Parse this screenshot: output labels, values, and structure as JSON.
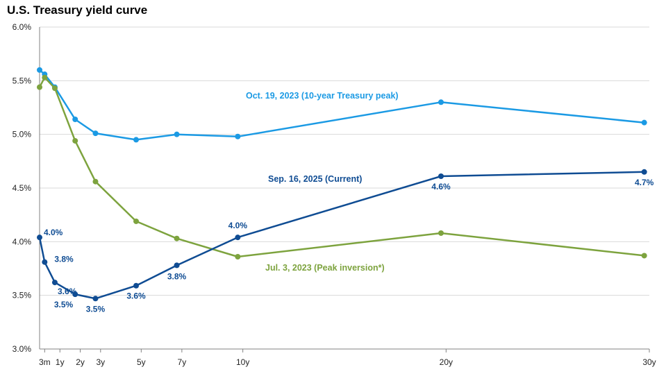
{
  "chart_data": {
    "type": "line",
    "title": "U.S. Treasury yield curve",
    "xlabel": "",
    "ylabel": "",
    "x_ticks": [
      {
        "label": "3m",
        "year": 0.25
      },
      {
        "label": "1y",
        "year": 1
      },
      {
        "label": "2y",
        "year": 2
      },
      {
        "label": "3y",
        "year": 3
      },
      {
        "label": "5y",
        "year": 5
      },
      {
        "label": "7y",
        "year": 7
      },
      {
        "label": "10y",
        "year": 10
      },
      {
        "label": "20y",
        "year": 20
      },
      {
        "label": "30y",
        "year": 30
      }
    ],
    "xlim": [
      0,
      30
    ],
    "y_ticks": [
      "3.0%",
      "3.5%",
      "4.0%",
      "4.5%",
      "5.0%",
      "5.5%",
      "6.0%"
    ],
    "y_tick_values": [
      3.0,
      3.5,
      4.0,
      4.5,
      5.0,
      5.5,
      6.0
    ],
    "ylim": [
      3.0,
      6.0
    ],
    "series": [
      {
        "name": "Oct. 19, 2023 (10-year Treasury peak)",
        "color": "#1B9AE4",
        "x": [
          0,
          0.25,
          0.75,
          1.75,
          2.75,
          4.75,
          6.75,
          9.75,
          19.75,
          29.75
        ],
        "values": [
          5.6,
          5.56,
          5.44,
          5.14,
          5.01,
          4.95,
          5.0,
          4.98,
          5.3,
          5.11
        ],
        "point_labels": []
      },
      {
        "name": "Jul. 3, 2023 (Peak inversion*)",
        "color": "#7DA33E",
        "x": [
          0,
          0.25,
          0.75,
          1.75,
          2.75,
          4.75,
          6.75,
          9.75,
          19.75,
          29.75
        ],
        "values": [
          5.44,
          5.53,
          5.43,
          4.94,
          4.56,
          4.19,
          4.03,
          3.86,
          4.08,
          3.87
        ],
        "point_labels": []
      },
      {
        "name": "Sep. 16, 2025 (Current)",
        "color": "#0F4C93",
        "x": [
          0,
          0.25,
          0.75,
          1.75,
          2.75,
          4.75,
          6.75,
          9.75,
          19.75,
          29.75
        ],
        "values": [
          4.04,
          3.81,
          3.62,
          3.51,
          3.47,
          3.59,
          3.78,
          4.04,
          4.61,
          4.65
        ],
        "point_labels": [
          "4.0%",
          "3.8%",
          "3.6%",
          "3.5%",
          "3.5%",
          "3.6%",
          "3.8%",
          "4.0%",
          "4.6%",
          "4.7%"
        ]
      }
    ],
    "annotations": [
      {
        "text": "Oct. 19, 2023 (10-year Treasury peak)",
        "series": 0
      },
      {
        "text": "Sep. 16, 2025 (Current)",
        "series": 2
      },
      {
        "text": "Jul. 3, 2023 (Peak inversion*)",
        "series": 1
      }
    ],
    "grid": true
  }
}
